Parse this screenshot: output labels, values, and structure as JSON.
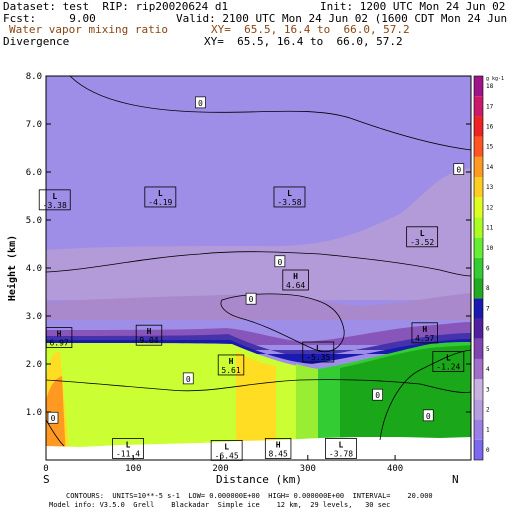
{
  "header": {
    "dataset": "Dataset: test  RIP: rip20020624 d1",
    "init": "Init: 1200 UTC Mon 24 Jun 02",
    "fcst": "Fcst:     9.00",
    "valid": "Valid: 2100 UTC Mon 24 Jun 02 (1600 CDT Mon 24 Jun 02)",
    "field1_name": "Water vapor mixing ratio",
    "field1_xy": "XY=  65.5, 16.4 to  66.0, 57.2",
    "field2_name": "Divergence",
    "field2_xy": "XY=  65.5, 16.4 to  66.0, 57.2"
  },
  "footer": {
    "line1": "CONTOURS:  UNITS=10**-5 s-1  LOW= 0.000000E+00  HIGH= 0.000000E+00  INTERVAL=    20.000",
    "line2": "Model info: V3.5.0  Grell    Blackadar  Simple ice    12 km,  29 levels,   30 sec"
  },
  "colors": {
    "c_lavender": "#9e8ee8",
    "c_violet": "#b39ad8",
    "c_purple_light": "#aa88cc",
    "c_purple": "#8855bb",
    "c_indigo": "#4433aa",
    "c_blue": "#1a1ab0",
    "c_yellow_green": "#ccff33",
    "c_lime": "#99ee33",
    "c_green": "#33cc33",
    "c_dark_green": "#1aa81a",
    "c_yellow": "#ffdd22",
    "c_orange": "#ff9922",
    "terrain": "#ffffff"
  },
  "chart_data": {
    "type": "heatmap",
    "title": "Water vapor mixing ratio / Divergence",
    "xlabel": "Distance (km)",
    "ylabel": "Height (km)",
    "xlim": [
      0,
      487
    ],
    "ylim": [
      0,
      8
    ],
    "x_ticks": [
      "0",
      "100",
      "200",
      "300",
      "400"
    ],
    "x_tick_values": [
      0,
      100,
      200,
      300,
      400
    ],
    "y_ticks": [
      "1.0",
      "2.0",
      "3.0",
      "4.0",
      "5.0",
      "6.0",
      "7.0",
      "8.0"
    ],
    "y_tick_values": [
      1,
      2,
      3,
      4,
      5,
      6,
      7,
      8
    ],
    "x_end_labels": {
      "left": "S",
      "right": "N"
    },
    "colorbar": {
      "unit": "g kg-1",
      "levels": [
        "0",
        "1",
        "2",
        "3",
        "4",
        "5",
        "6",
        "7",
        "8",
        "9",
        "10",
        "11",
        "12",
        "13",
        "14",
        "15",
        "16",
        "17",
        "18"
      ],
      "colors": [
        "#7b68ee",
        "#9a7fe6",
        "#b49ee0",
        "#c8b0e0",
        "#a070c8",
        "#8044b0",
        "#5020a0",
        "#1a1ab0",
        "#22aa22",
        "#33cc33",
        "#66ee33",
        "#aaff22",
        "#ddff22",
        "#ffcc22",
        "#ff9922",
        "#ff5522",
        "#ee2222",
        "#cc1a6a",
        "#a0148a"
      ]
    },
    "divergence_labels": [
      {
        "text": "0",
        "x": 177,
        "y": 7.44
      },
      {
        "text": "0",
        "x": 473,
        "y": 6.05
      },
      {
        "text": "0",
        "x": 268,
        "y": 4.13
      },
      {
        "text": "0",
        "x": 235,
        "y": 3.35
      },
      {
        "text": "0",
        "x": 163,
        "y": 1.69
      },
      {
        "text": "0",
        "x": 380,
        "y": 1.35
      },
      {
        "text": "0",
        "x": 438,
        "y": 0.92
      },
      {
        "text": "0",
        "x": 8,
        "y": 0.87
      }
    ],
    "extrema": [
      {
        "kind": "L",
        "value": "-3.38",
        "x": 10,
        "y": 5.42
      },
      {
        "kind": "L",
        "value": "-4.19",
        "x": 131,
        "y": 5.48
      },
      {
        "kind": "L",
        "value": "-3.58",
        "x": 279,
        "y": 5.48
      },
      {
        "kind": "L",
        "value": "-3.52",
        "x": 431,
        "y": 4.65
      },
      {
        "kind": "H",
        "value": "4.64",
        "x": 286,
        "y": 3.75
      },
      {
        "kind": "H",
        "value": "6.97",
        "x": 15,
        "y": 2.55
      },
      {
        "kind": "H",
        "value": "9.04",
        "x": 118,
        "y": 2.6
      },
      {
        "kind": "H",
        "value": "5.61",
        "x": 212,
        "y": 1.98
      },
      {
        "kind": "L",
        "value": "-5.35",
        "x": 312,
        "y": 2.25
      },
      {
        "kind": "H",
        "value": "4.57",
        "x": 434,
        "y": 2.65
      },
      {
        "kind": "L",
        "value": "-1.24",
        "x": 461,
        "y": 2.05
      },
      {
        "kind": "L",
        "value": "-11.4",
        "x": 94,
        "y": 0.24
      },
      {
        "kind": "L",
        "value": "-6.45",
        "x": 207,
        "y": 0.2
      },
      {
        "kind": "H",
        "value": "8.45",
        "x": 266,
        "y": 0.24
      },
      {
        "kind": "L",
        "value": "-3.78",
        "x": 338,
        "y": 0.24
      }
    ]
  }
}
